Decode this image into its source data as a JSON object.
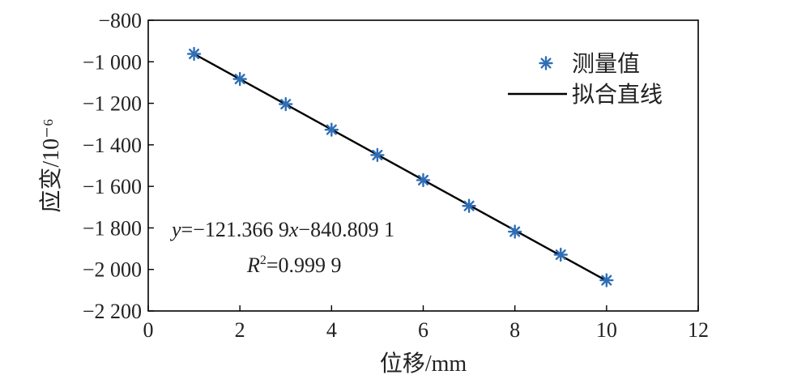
{
  "chart_data": {
    "type": "scatter",
    "title": "",
    "xlabel": "位移/mm",
    "ylabel": "应变/10⁻⁶",
    "xlim": [
      0,
      12
    ],
    "ylim": [
      -2200,
      -800
    ],
    "xticks": [
      0,
      2,
      4,
      6,
      8,
      10,
      12
    ],
    "xtick_labels": [
      "0",
      "2",
      "4",
      "6",
      "8",
      "10",
      "12"
    ],
    "yticks": [
      -800,
      -1000,
      -1200,
      -1400,
      -1600,
      -1800,
      -2000,
      -2200
    ],
    "ytick_labels": [
      "−800",
      "−1 000",
      "−1 200",
      "−1 400",
      "−1 600",
      "−1 800",
      "−2 000",
      "−2 200"
    ],
    "grid": false,
    "legend_position": "top-right",
    "series": [
      {
        "name": "测量值",
        "kind": "scatter",
        "marker": "asterisk",
        "color": "#2f6eb5",
        "x": [
          1,
          2,
          3,
          4,
          5,
          6,
          7,
          8,
          9,
          10
        ],
        "y": [
          -962,
          -1083,
          -1204,
          -1327,
          -1449,
          -1570,
          -1694,
          -1818,
          -1929,
          -2052
        ]
      },
      {
        "name": "拟合直线",
        "kind": "line",
        "color": "#000000",
        "x": [
          1,
          10
        ],
        "y": [
          -962.176,
          -2054.4781
        ]
      }
    ],
    "annotation": {
      "equation_parts": [
        "y",
        "=−121.366 9",
        "x",
        "−840.809 1"
      ],
      "r2_parts": [
        "R",
        "2",
        "=0.999 9"
      ]
    }
  }
}
